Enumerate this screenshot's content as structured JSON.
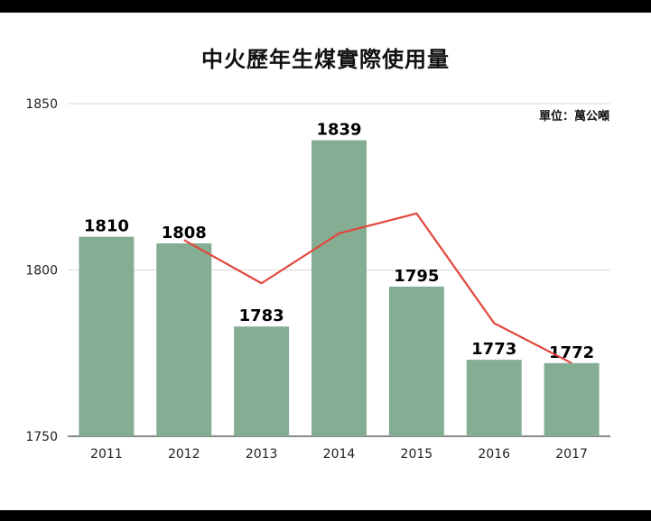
{
  "chart_data": {
    "type": "bar",
    "title": "中火歷年生煤實際使用量",
    "unit_label": "單位：萬公噸",
    "categories": [
      "2011",
      "2012",
      "2013",
      "2014",
      "2015",
      "2016",
      "2017"
    ],
    "series": [
      {
        "type": "bar",
        "values": [
          1810,
          1808,
          1783,
          1839,
          1795,
          1773,
          1772
        ],
        "color": "#84ad93"
      },
      {
        "type": "line",
        "values": [
          null,
          1809,
          1796,
          1811,
          1817,
          1784,
          1772
        ],
        "color": "#e2473b"
      }
    ],
    "ylim": [
      1750,
      1850
    ],
    "yticks": [
      1750,
      1800,
      1850
    ],
    "grid": true
  }
}
